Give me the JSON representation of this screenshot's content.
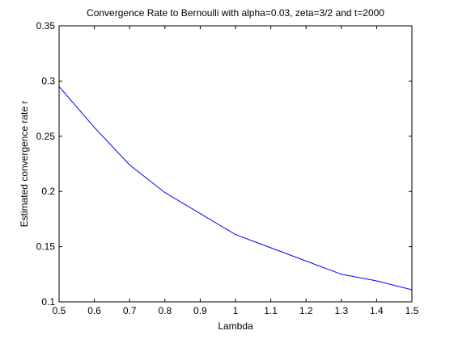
{
  "chart_data": {
    "type": "line",
    "title": "Convergence Rate to Bernoulli with alpha=0.03, zeta=3/2 and t=2000",
    "xlabel": "Lambda",
    "ylabel": "Estimated convergence rate r",
    "xlim": [
      0.5,
      1.5
    ],
    "ylim": [
      0.1,
      0.35
    ],
    "xticks": [
      "0.5",
      "0.6",
      "0.7",
      "0.8",
      "0.9",
      "1",
      "1.1",
      "1.2",
      "1.3",
      "1.4",
      "1.5"
    ],
    "yticks": [
      "0.1",
      "0.15",
      "0.2",
      "0.25",
      "0.3",
      "0.35"
    ],
    "grid": false,
    "line_color": "#0000ff",
    "series": [
      {
        "x": [
          0.5,
          0.6,
          0.7,
          0.8,
          0.9,
          1.0,
          1.1,
          1.2,
          1.3,
          1.4,
          1.5
        ],
        "y": [
          0.295,
          0.258,
          0.224,
          0.199,
          0.18,
          0.161,
          0.149,
          0.137,
          0.125,
          0.119,
          0.111
        ]
      }
    ]
  }
}
